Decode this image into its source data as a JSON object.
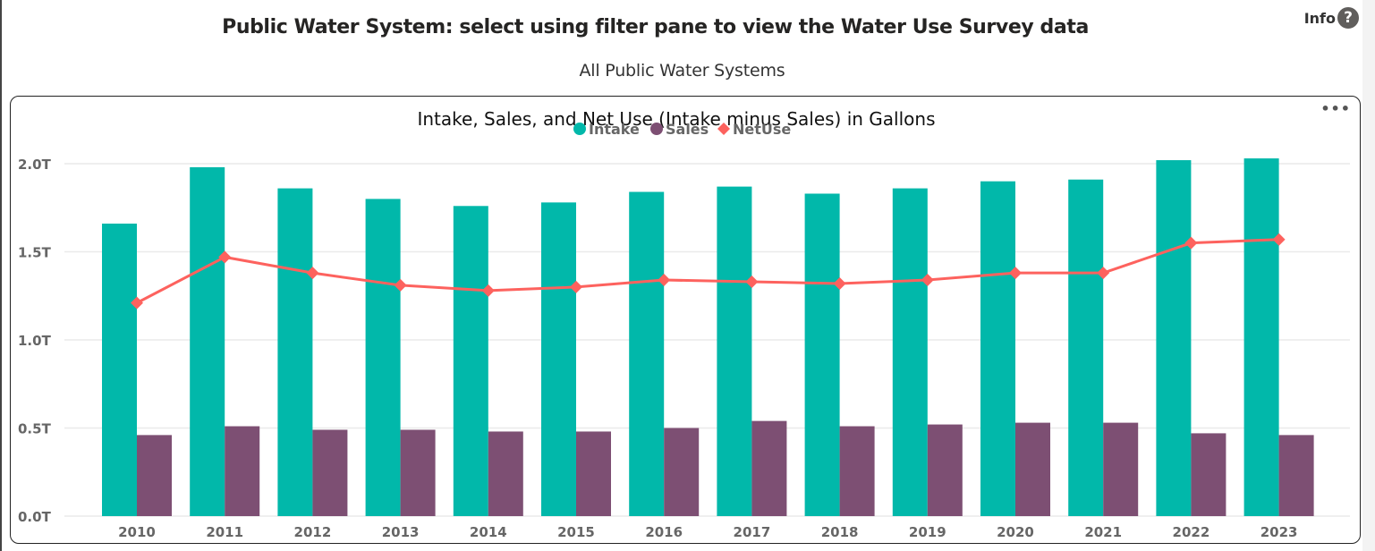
{
  "header": {
    "title": "Public Water System: select using filter pane to view the Water Use Survey data",
    "subtitle": "All Public Water Systems",
    "info_label": "Info",
    "info_icon": "question-circle-icon"
  },
  "visual": {
    "more_options_icon": "ellipsis-icon",
    "more_options_label": "•••"
  },
  "colors": {
    "intake": "#01B8AA",
    "sales": "#7D4F73",
    "netuse": "#FD625E",
    "grid": "#eaeaea",
    "axis_text": "#666666"
  },
  "chart_data": {
    "type": "bar",
    "title": "Intake, Sales, and Net Use (Intake minus Sales) in Gallons",
    "xlabel": "",
    "ylabel": "",
    "ylim": [
      0,
      2.0
    ],
    "y_unit_suffix": "T",
    "y_ticks": [
      "0.0T",
      "0.5T",
      "1.0T",
      "1.5T",
      "2.0T"
    ],
    "y_tick_values": [
      0,
      0.5,
      1.0,
      1.5,
      2.0
    ],
    "grid": true,
    "legend_position": "top-center",
    "categories": [
      "2010",
      "2011",
      "2012",
      "2013",
      "2014",
      "2015",
      "2016",
      "2017",
      "2018",
      "2019",
      "2020",
      "2021",
      "2022",
      "2023"
    ],
    "series": [
      {
        "name": "Intake",
        "kind": "bar",
        "marker": "circle",
        "values": [
          1.66,
          1.98,
          1.86,
          1.8,
          1.76,
          1.78,
          1.84,
          1.87,
          1.83,
          1.86,
          1.9,
          1.91,
          2.02,
          2.03
        ]
      },
      {
        "name": "Sales",
        "kind": "bar",
        "marker": "circle",
        "values": [
          0.46,
          0.51,
          0.49,
          0.49,
          0.48,
          0.48,
          0.5,
          0.54,
          0.51,
          0.52,
          0.53,
          0.53,
          0.47,
          0.46
        ]
      },
      {
        "name": "NetUse",
        "kind": "line",
        "marker": "diamond",
        "values": [
          1.21,
          1.47,
          1.38,
          1.31,
          1.28,
          1.3,
          1.34,
          1.33,
          1.32,
          1.34,
          1.38,
          1.38,
          1.55,
          1.57
        ]
      }
    ]
  }
}
